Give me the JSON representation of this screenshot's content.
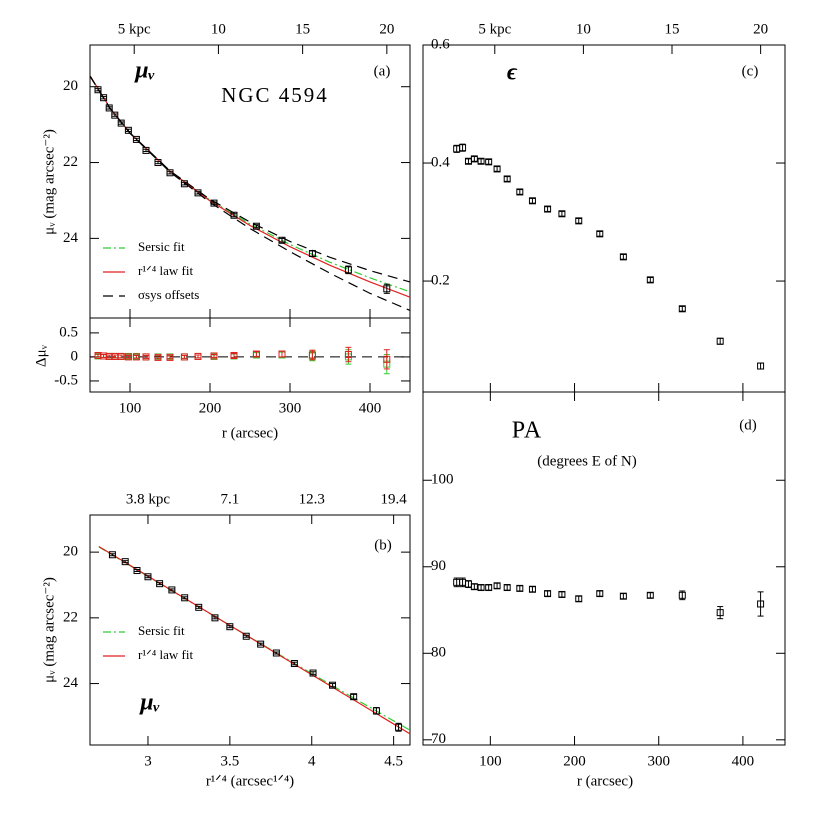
{
  "chart_data": [
    {
      "type": "errorbar",
      "title": "NGC 4594",
      "panel_label": "(a)",
      "quantity_label": "μᵥ",
      "ylabel": "μᵥ  (mag arcsec⁻²)",
      "x": [
        60,
        67,
        74,
        81,
        89,
        98,
        108,
        120,
        135,
        150,
        168,
        185,
        205,
        230,
        258,
        290,
        328,
        373,
        421
      ],
      "values": [
        20.08,
        20.29,
        20.56,
        20.75,
        20.96,
        21.15,
        21.39,
        21.68,
        22.0,
        22.27,
        22.56,
        22.8,
        23.07,
        23.39,
        23.68,
        24.05,
        24.4,
        24.83,
        25.33
      ],
      "errors": [
        0.03,
        0.03,
        0.03,
        0.03,
        0.03,
        0.03,
        0.03,
        0.03,
        0.03,
        0.03,
        0.03,
        0.03,
        0.03,
        0.04,
        0.04,
        0.05,
        0.07,
        0.1,
        0.12
      ],
      "color": "#000000",
      "lines": [
        {
          "name": "Sersic fit",
          "color": "#33cc33",
          "style": "dashdot",
          "x": [
            50,
            75,
            100,
            150,
            200,
            250,
            300,
            350,
            400,
            450
          ],
          "values": [
            19.72,
            20.57,
            21.23,
            22.23,
            22.99,
            23.62,
            24.16,
            24.63,
            25.04,
            25.41
          ]
        },
        {
          "name": "r¹ᐟ⁴ law fit",
          "color": "#e02020",
          "style": "solid",
          "x": [
            50,
            75,
            100,
            150,
            200,
            250,
            300,
            350,
            400,
            450
          ],
          "values": [
            19.71,
            20.56,
            21.22,
            22.23,
            23.01,
            23.66,
            24.22,
            24.71,
            25.15,
            25.55
          ]
        },
        {
          "name": "σsys offsets",
          "color": "#000000",
          "style": "dashed",
          "x": [
            50,
            75,
            100,
            150,
            200,
            250,
            300,
            350,
            400,
            450
          ],
          "values": [
            19.72,
            20.57,
            21.22,
            22.22,
            22.97,
            23.57,
            24.08,
            24.5,
            24.85,
            25.15
          ],
          "lower_values": [
            19.72,
            20.57,
            21.23,
            22.25,
            23.05,
            23.74,
            24.35,
            24.92,
            25.45,
            25.9
          ]
        }
      ],
      "xlim": [
        50,
        450
      ],
      "xticks": [
        100,
        200,
        300,
        400
      ],
      "ylim": [
        26.1,
        18.9
      ],
      "yticks": [
        20,
        22,
        24
      ],
      "x2lim": [
        2.375,
        21.375
      ],
      "x2ticks": [
        {
          "value": 5,
          "label": "5 kpc"
        },
        10,
        15,
        20
      ]
    },
    {
      "type": "errorbar",
      "ylabel": "Δμᵥ",
      "xlabel": "r (arcsec)",
      "x": [
        60,
        67,
        74,
        81,
        89,
        98,
        108,
        120,
        135,
        150,
        168,
        185,
        205,
        230,
        258,
        290,
        328,
        373,
        421
      ],
      "series": [
        {
          "color": "#33cc33",
          "values": [
            0.02,
            0.02,
            0.01,
            0.01,
            0.01,
            0.01,
            0.01,
            0.0,
            0.0,
            0.0,
            0.0,
            0.01,
            0.01,
            0.02,
            0.04,
            0.04,
            0.02,
            0.0,
            -0.15
          ],
          "errors": [
            0.03,
            0.03,
            0.03,
            0.03,
            0.03,
            0.03,
            0.03,
            0.03,
            0.03,
            0.03,
            0.03,
            0.03,
            0.03,
            0.04,
            0.05,
            0.06,
            0.1,
            0.15,
            0.2
          ]
        },
        {
          "color": "#e02020",
          "values": [
            0.03,
            0.02,
            0.01,
            0.01,
            0.01,
            0.0,
            0.0,
            0.0,
            -0.01,
            -0.01,
            0.0,
            0.01,
            0.02,
            0.03,
            0.06,
            0.06,
            0.04,
            0.05,
            -0.05
          ],
          "errors": [
            0.03,
            0.03,
            0.03,
            0.03,
            0.03,
            0.03,
            0.03,
            0.03,
            0.03,
            0.03,
            0.03,
            0.03,
            0.03,
            0.04,
            0.05,
            0.06,
            0.1,
            0.15,
            0.2
          ]
        }
      ],
      "zero_line": true,
      "xlim": [
        50,
        450
      ],
      "xticks": [
        100,
        200,
        300,
        400
      ],
      "ylim": [
        -0.73,
        0.81
      ],
      "yticks": [
        0.5,
        0,
        -0.5
      ]
    },
    {
      "type": "errorbar",
      "panel_label": "(b)",
      "quantity_label": "μᵥ",
      "ylabel": "μᵥ  (mag arcsec⁻²)",
      "xlabel": "r¹ᐟ⁴ (arcsec¹ᐟ⁴)",
      "x": [
        2.783,
        2.861,
        2.933,
        3.0,
        3.071,
        3.146,
        3.224,
        3.31,
        3.409,
        3.5,
        3.6,
        3.688,
        3.784,
        3.894,
        4.008,
        4.127,
        4.256,
        4.395,
        4.53
      ],
      "values": [
        20.08,
        20.29,
        20.56,
        20.75,
        20.96,
        21.15,
        21.39,
        21.68,
        22.0,
        22.27,
        22.56,
        22.8,
        23.07,
        23.39,
        23.68,
        24.05,
        24.4,
        24.83,
        25.33
      ],
      "errors": [
        0.03,
        0.03,
        0.03,
        0.03,
        0.03,
        0.03,
        0.03,
        0.03,
        0.03,
        0.03,
        0.03,
        0.03,
        0.03,
        0.04,
        0.04,
        0.05,
        0.07,
        0.1,
        0.12
      ],
      "color": "#000000",
      "lines": [
        {
          "name": "Sersic fit",
          "color": "#33cc33",
          "style": "dashdot",
          "x": [
            2.7,
            3.2,
            3.7,
            4.2,
            4.6
          ],
          "values": [
            19.84,
            21.34,
            22.82,
            24.28,
            25.42
          ]
        },
        {
          "name": "r¹ᐟ⁴ law fit",
          "color": "#e02020",
          "style": "solid",
          "x": [
            2.7,
            3.2,
            3.7,
            4.2,
            4.6
          ],
          "values": [
            19.83,
            21.33,
            22.83,
            24.33,
            25.53
          ]
        }
      ],
      "xlim": [
        2.646,
        4.6
      ],
      "xticks": [
        3,
        3.5,
        4,
        4.5
      ],
      "ylim": [
        25.87,
        18.87
      ],
      "yticks": [
        20,
        22,
        24
      ],
      "x2ticks": [
        {
          "value": 3,
          "label": "3.8 kpc"
        },
        {
          "value": 3.5,
          "label": "7.1"
        },
        {
          "value": 4,
          "label": "12.3"
        },
        {
          "value": 4.5,
          "label": "19.4"
        }
      ]
    },
    {
      "type": "errorbar",
      "panel_label": "(c)",
      "quantity_label": "ϵ",
      "x": [
        60,
        67,
        74,
        81,
        89,
        98,
        108,
        120,
        135,
        150,
        168,
        185,
        205,
        230,
        258,
        290,
        328,
        373,
        421
      ],
      "values": [
        0.424,
        0.426,
        0.403,
        0.407,
        0.403,
        0.402,
        0.39,
        0.373,
        0.351,
        0.336,
        0.322,
        0.314,
        0.302,
        0.28,
        0.241,
        0.202,
        0.153,
        0.098,
        0.056
      ],
      "errors": [
        0.006,
        0.006,
        0.004,
        0.004,
        0.004,
        0.004,
        0.004,
        0.004,
        0.004,
        0.004,
        0.004,
        0.004,
        0.004,
        0.004,
        0.004,
        0.004,
        0.004,
        0.005,
        0.005
      ],
      "color": "#000000",
      "xlim": [
        20,
        450
      ],
      "xticks": [
        100,
        200,
        300,
        400
      ],
      "ylim": [
        0.012,
        0.6
      ],
      "yticks": [
        0.2,
        0.4,
        0.6
      ],
      "x2lim": [
        0.95,
        21.375
      ],
      "x2ticks": [
        {
          "value": 5,
          "label": "5 kpc"
        },
        10,
        15,
        20
      ]
    },
    {
      "type": "errorbar",
      "title": "PA",
      "subtitle": "(degrees E of N)",
      "panel_label": "(d)",
      "xlabel": "r (arcsec)",
      "x": [
        60,
        67,
        74,
        81,
        89,
        98,
        108,
        120,
        135,
        150,
        168,
        185,
        205,
        230,
        258,
        290,
        328,
        373,
        421
      ],
      "values": [
        88.2,
        88.2,
        88.0,
        87.7,
        87.6,
        87.6,
        87.8,
        87.6,
        87.5,
        87.4,
        86.9,
        86.8,
        86.3,
        86.9,
        86.6,
        86.7,
        86.7,
        84.7,
        85.7
      ],
      "errors": [
        0.5,
        0.5,
        0.4,
        0.3,
        0.3,
        0.3,
        0.3,
        0.3,
        0.3,
        0.3,
        0.3,
        0.3,
        0.3,
        0.3,
        0.3,
        0.3,
        0.5,
        0.7,
        1.4
      ],
      "color": "#000000",
      "xlim": [
        20,
        450
      ],
      "xticks": [
        100,
        200,
        300,
        400
      ],
      "ylim": [
        69.4,
        110.2
      ],
      "yticks": [
        70,
        80,
        90,
        100
      ]
    }
  ]
}
